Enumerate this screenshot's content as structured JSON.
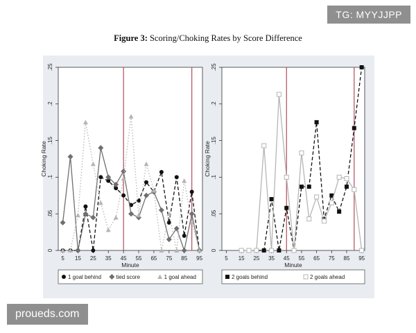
{
  "figure": {
    "label": "Figure 3:",
    "title": "Scoring/Choking Rates by Score Difference"
  },
  "watermarks": {
    "top_right": "TG: MYYJJPP",
    "bottom_left": "proueds.com"
  },
  "colors": {
    "background_panel": "#e9edf2",
    "plot_bg": "#ffffff",
    "reference_line": "#b24a5c",
    "series_black": "#111111",
    "series_dark_gray": "#6f6f6f",
    "series_light_gray": "#b5b5b5"
  },
  "chart_data": [
    {
      "type": "line",
      "xlabel": "Minute",
      "ylabel": "Choking Rate",
      "xlim": [
        2,
        97
      ],
      "ylim": [
        0,
        0.25
      ],
      "x_ticks": [
        5,
        15,
        25,
        35,
        45,
        55,
        65,
        75,
        85,
        95
      ],
      "x_tick_labels": [
        "5",
        "15",
        "25",
        "35",
        "45",
        "55",
        "65",
        "75",
        "85",
        "95"
      ],
      "y_ticks": [
        0,
        0.05,
        0.1,
        0.15,
        0.2,
        0.25
      ],
      "y_tick_labels": [
        "0",
        ".05",
        ".1",
        ".15",
        ".2",
        ".25"
      ],
      "vertical_lines": [
        45,
        90
      ],
      "grid": false,
      "legend_position": "bottom",
      "series": [
        {
          "name": "1 goal behind",
          "marker": "circle",
          "dash": "dashed",
          "color": "#111111",
          "x": [
            5,
            10,
            15,
            20,
            25,
            30,
            35,
            40,
            45,
            50,
            55,
            60,
            65,
            70,
            75,
            80,
            85,
            90,
            95
          ],
          "y": [
            0,
            0,
            0,
            0.06,
            0,
            0.1,
            0.095,
            0.085,
            0.075,
            0.062,
            0.068,
            0.093,
            0.08,
            0.107,
            0.038,
            0.1,
            0.02,
            0.08,
            0
          ]
        },
        {
          "name": "tied score",
          "marker": "diamond",
          "dash": "solid",
          "color": "#6f6f6f",
          "x": [
            5,
            10,
            15,
            20,
            25,
            30,
            35,
            40,
            45,
            50,
            55,
            60,
            65,
            70,
            75,
            80,
            85,
            90,
            95
          ],
          "y": [
            0.038,
            0.128,
            0,
            0.05,
            0.045,
            0.14,
            0.1,
            0.09,
            0.108,
            0.05,
            0.045,
            0.075,
            0.08,
            0.055,
            0.015,
            0.03,
            0,
            0.05,
            0
          ]
        },
        {
          "name": "1 goal ahead",
          "marker": "triangle",
          "dash": "dotted",
          "color": "#b5b5b5",
          "x": [
            5,
            10,
            15,
            20,
            25,
            30,
            35,
            40,
            45,
            50,
            55,
            60,
            65,
            70,
            75,
            80,
            85,
            90,
            95
          ],
          "y": [
            0,
            0,
            0.048,
            0.175,
            0.118,
            0.065,
            0.028,
            0.045,
            0.098,
            0.183,
            0.048,
            0.118,
            0.082,
            0,
            0.05,
            0,
            0.095,
            0.038,
            0
          ]
        }
      ]
    },
    {
      "type": "line",
      "xlabel": "Minute",
      "ylabel": "Choking Rate",
      "xlim": [
        2,
        97
      ],
      "ylim": [
        0,
        0.25
      ],
      "x_ticks": [
        5,
        15,
        25,
        35,
        45,
        55,
        65,
        75,
        85,
        95
      ],
      "x_tick_labels": [
        "5",
        "15",
        "25",
        "35",
        "45",
        "55",
        "65",
        "75",
        "85",
        "95"
      ],
      "y_ticks": [
        0,
        0.05,
        0.1,
        0.15,
        0.2,
        0.25
      ],
      "y_tick_labels": [
        "0",
        ".05",
        ".1",
        ".15",
        ".2",
        ".25"
      ],
      "vertical_lines": [
        45,
        90
      ],
      "grid": false,
      "legend_position": "bottom",
      "series": [
        {
          "name": "2 goals behind",
          "marker": "square",
          "dash": "dashed",
          "color": "#111111",
          "x": [
            15,
            20,
            25,
            30,
            35,
            40,
            45,
            50,
            55,
            60,
            65,
            70,
            75,
            80,
            85,
            90,
            95
          ],
          "y": [
            0,
            0,
            0,
            0,
            0.07,
            0,
            0.058,
            0,
            0.087,
            0.087,
            0.175,
            0.043,
            0.075,
            0.053,
            0.087,
            0.167,
            0.25
          ]
        },
        {
          "name": "2 goals ahead",
          "marker": "square-open",
          "dash": "solid",
          "color": "#b5b5b5",
          "x": [
            15,
            20,
            25,
            30,
            35,
            40,
            45,
            50,
            55,
            60,
            65,
            70,
            75,
            80,
            85,
            90,
            95
          ],
          "y": [
            0,
            0,
            0,
            0.143,
            0,
            0.213,
            0.1,
            0,
            0.133,
            0.043,
            0.073,
            0.04,
            0.065,
            0.1,
            0.098,
            0.083,
            0
          ]
        }
      ]
    }
  ]
}
